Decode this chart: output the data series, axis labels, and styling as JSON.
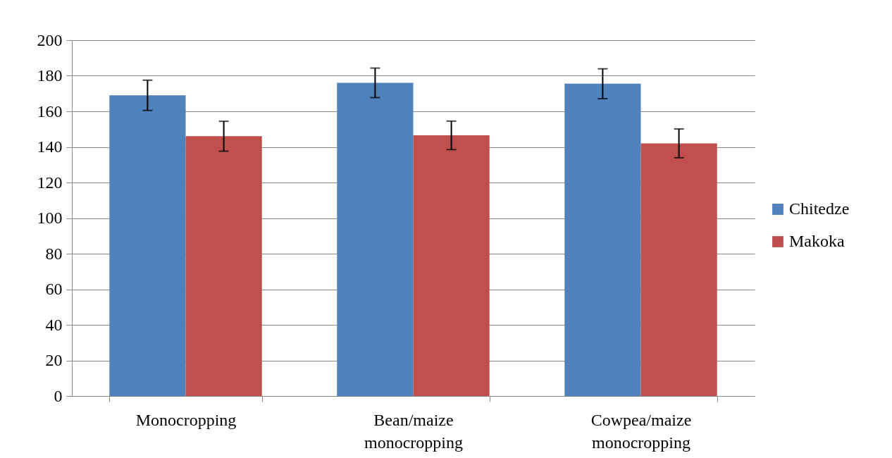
{
  "chart_data": {
    "type": "bar",
    "categories": [
      "Monocropping",
      "Bean/maize monocropping",
      "Cowpea/maize monocropping"
    ],
    "series": [
      {
        "name": "Chitedze",
        "color": "#4f81bd",
        "values": [
          169,
          176,
          175.5
        ],
        "errors": [
          8.5,
          8.3,
          8.4
        ]
      },
      {
        "name": "Makoka",
        "color": "#c0504d",
        "values": [
          146,
          146.5,
          142
        ],
        "errors": [
          8.4,
          8,
          8.1
        ]
      }
    ],
    "ylim": [
      0,
      200
    ],
    "yticks": [
      0,
      20,
      40,
      60,
      80,
      100,
      120,
      140,
      160,
      180,
      200
    ],
    "grid": "y",
    "legend": "right"
  }
}
